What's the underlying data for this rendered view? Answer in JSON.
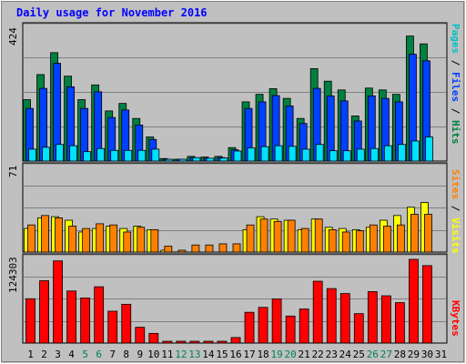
{
  "title": "Daily usage for November 2016",
  "colors": {
    "hits": "#00c0c0",
    "hits_bar": "#00e0ff",
    "files": "#0040ff",
    "pages": "#00c0c0",
    "hits_dark": "#008040",
    "visits": "#ffff00",
    "sites": "#ff8000",
    "kbytes": "#ff0000",
    "weekend_day": "#00805c",
    "weekday": "#000000",
    "title": "#0000ff"
  },
  "right_labels": {
    "top": {
      "pages": "Pages",
      "files": "Files",
      "hits": "Hits",
      "sep": " / "
    },
    "mid": {
      "sites": "Sites",
      "visits": "Visits",
      "sep": " / "
    },
    "bot": {
      "kbytes": "KBytes"
    }
  },
  "chart_data": [
    {
      "type": "bar",
      "title": "Daily usage for November 2016",
      "panel": "hits-files-pages",
      "categories": [
        "1",
        "2",
        "3",
        "4",
        "5",
        "6",
        "7",
        "8",
        "9",
        "10",
        "11",
        "12",
        "13",
        "14",
        "15",
        "16",
        "17",
        "18",
        "19",
        "20",
        "21",
        "22",
        "23",
        "24",
        "25",
        "26",
        "27",
        "28",
        "29",
        "30",
        "31"
      ],
      "ymax_label": "424",
      "ylim": [
        0,
        424
      ],
      "weekend_days": [
        "5",
        "6",
        "12",
        "13",
        "19",
        "20",
        "26",
        "27"
      ],
      "series": [
        {
          "name": "Hits",
          "values": [
            196,
            276,
            346,
            271,
            196,
            243,
            160,
            184,
            136,
            77,
            8,
            4,
            15,
            13,
            15,
            43,
            189,
            213,
            231,
            200,
            136,
            295,
            255,
            227,
            144,
            233,
            227,
            213,
            399,
            374,
            0
          ]
        },
        {
          "name": "Files",
          "values": [
            168,
            232,
            312,
            237,
            168,
            221,
            139,
            163,
            115,
            69,
            6,
            3,
            11,
            9,
            11,
            36,
            168,
            189,
            209,
            176,
            120,
            232,
            208,
            192,
            128,
            208,
            200,
            189,
            341,
            320,
            0
          ]
        },
        {
          "name": "Pages",
          "values": [
            38,
            44,
            53,
            49,
            30,
            40,
            34,
            34,
            34,
            38,
            3,
            2,
            11,
            9,
            10,
            32,
            42,
            46,
            49,
            47,
            38,
            53,
            33,
            33,
            38,
            40,
            49,
            53,
            64,
            77,
            0
          ]
        }
      ]
    },
    {
      "type": "bar",
      "panel": "visits-sites",
      "categories": [
        "1",
        "2",
        "3",
        "4",
        "5",
        "6",
        "7",
        "8",
        "9",
        "10",
        "11",
        "12",
        "13",
        "14",
        "15",
        "16",
        "17",
        "18",
        "19",
        "20",
        "21",
        "22",
        "23",
        "24",
        "25",
        "26",
        "27",
        "28",
        "29",
        "30",
        "31"
      ],
      "ymax_label": "71",
      "ylim": [
        0,
        71
      ],
      "series": [
        {
          "name": "Visits",
          "values": [
            20,
            29,
            30,
            27,
            17,
            20,
            22,
            20,
            22,
            19,
            1,
            0,
            0,
            0,
            0,
            0,
            19,
            30,
            28,
            27,
            19,
            28,
            21,
            20,
            19,
            21,
            27,
            31,
            38,
            42,
            0
          ]
        },
        {
          "name": "Sites",
          "values": [
            23,
            31,
            29,
            22,
            20,
            24,
            23,
            17,
            21,
            19,
            5,
            1,
            6,
            6,
            7,
            7,
            23,
            28,
            26,
            27,
            20,
            28,
            19,
            17,
            18,
            23,
            22,
            23,
            32,
            32,
            0
          ]
        }
      ]
    },
    {
      "type": "bar",
      "panel": "kbytes",
      "categories": [
        "1",
        "2",
        "3",
        "4",
        "5",
        "6",
        "7",
        "8",
        "9",
        "10",
        "11",
        "12",
        "13",
        "14",
        "15",
        "16",
        "17",
        "18",
        "19",
        "20",
        "21",
        "22",
        "23",
        "24",
        "25",
        "26",
        "27",
        "28",
        "29",
        "30",
        "31"
      ],
      "ymax_label": "124303",
      "ylim": [
        0,
        124303
      ],
      "series": [
        {
          "name": "KBytes",
          "values": [
            65800,
            92600,
            122000,
            77300,
            67000,
            83600,
            47300,
            57600,
            23500,
            14400,
            1000,
            800,
            1000,
            800,
            1000,
            8200,
            45700,
            53000,
            65500,
            40100,
            50600,
            91800,
            80900,
            73500,
            43700,
            76400,
            70200,
            60000,
            124303,
            115000,
            0
          ]
        }
      ]
    }
  ]
}
